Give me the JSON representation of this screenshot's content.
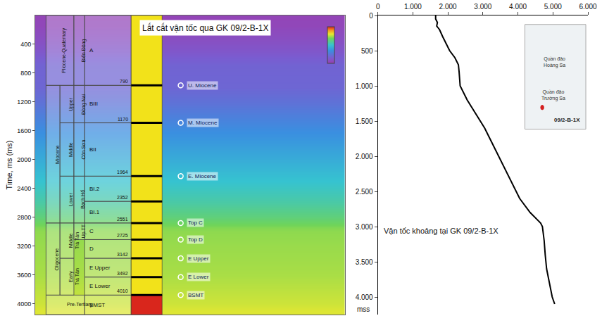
{
  "chart_data": [
    {
      "type": "heatmap",
      "title": "Lắt cắt vận tốc qua GK 09/2-B-1X",
      "y_label": "Time, ms (ms)",
      "ylim": [
        0,
        4150
      ],
      "yticks": [
        400,
        800,
        1200,
        1600,
        2000,
        2400,
        2800,
        3200,
        3600,
        4000
      ],
      "tick_labels": "y",
      "grid": false,
      "color_range": [
        1500,
        6000
      ],
      "cells": {
        "y": [
          0,
          50,
          100,
          150,
          200,
          250,
          300,
          400,
          500,
          600,
          700,
          800,
          1000,
          1200,
          1400,
          1600,
          1800,
          2000,
          2200,
          2400,
          2600,
          2800,
          2950,
          3000,
          3200,
          3400,
          3600,
          3800,
          4000,
          4100
        ],
        "values": [
          1650,
          1650,
          1700,
          1680,
          1760,
          1800,
          1850,
          1950,
          2050,
          2200,
          2300,
          2320,
          2350,
          2550,
          2800,
          3050,
          3250,
          3450,
          3650,
          3850,
          4050,
          4350,
          4650,
          4700,
          4750,
          4780,
          4820,
          4900,
          4980,
          5050
        ]
      },
      "column": {
        "cells": [
          {
            "label": "Pliocene-Quaternary",
            "cols": [
              1,
              2
            ],
            "top": 0,
            "base": 970
          },
          {
            "label": "Biển Đông",
            "cols": [
              3
            ],
            "top": 0,
            "base": 970
          },
          {
            "label": "Miocene",
            "cols": [
              1
            ],
            "top": 970,
            "base": 2880
          },
          {
            "label": "Upper",
            "cols": [
              2
            ],
            "top": 970,
            "base": 1490
          },
          {
            "label": "Middle",
            "cols": [
              2
            ],
            "top": 1490,
            "base": 2230
          },
          {
            "label": "Lower",
            "cols": [
              2
            ],
            "top": 2230,
            "base": 2880
          },
          {
            "label": "Đồng Nai",
            "cols": [
              3
            ],
            "top": 970,
            "base": 1490
          },
          {
            "label": "Côn Sơn",
            "cols": [
              3
            ],
            "top": 1490,
            "base": 2230
          },
          {
            "label": "Bạch Hổ",
            "cols": [
              3
            ],
            "top": 2230,
            "base": 2880
          },
          {
            "label": "Oligocene",
            "cols": [
              1
            ],
            "top": 2880,
            "base": 3880
          },
          {
            "label": "Middle Trà Tân",
            "cols": [
              2
            ],
            "top": 2880,
            "base": 3370
          },
          {
            "label": "Early Trà Tân",
            "cols": [
              2
            ],
            "top": 3370,
            "base": 3880
          },
          {
            "label": "Up.TT",
            "cols": [
              3
            ],
            "top": 2880,
            "base": 3110
          },
          {
            "label": "Pre-Tertiary",
            "cols": [
              1,
              2,
              3
            ],
            "top": 3880,
            "base": 4150
          }
        ],
        "units": [
          {
            "label": "A",
            "depth": 790,
            "top": 0,
            "base": 970
          },
          {
            "label": "BIII",
            "depth": 1170,
            "top": 970,
            "base": 1490
          },
          {
            "label": "BII",
            "depth": 1964,
            "top": 1490,
            "base": 2230
          },
          {
            "label": "BI.2",
            "depth": 2352,
            "top": 2230,
            "base": 2580
          },
          {
            "label": "BI.1",
            "depth": 2551,
            "top": 2580,
            "base": 2880
          },
          {
            "label": "C",
            "depth": 2725,
            "top": 2880,
            "base": 3110
          },
          {
            "label": "D",
            "depth": 3142,
            "top": 3110,
            "base": 3370
          },
          {
            "label": "E Upper",
            "depth": 3492,
            "top": 3370,
            "base": 3630
          },
          {
            "label": "E Lower",
            "depth": 4010,
            "top": 3630,
            "base": 3880
          },
          {
            "label": "BMST",
            "top": 3880,
            "base": 4150
          }
        ]
      },
      "markers": [
        {
          "label": "U. Miocene",
          "ms": 970
        },
        {
          "label": "M. Miocene",
          "ms": 1490
        },
        {
          "label": "E. Miocene",
          "ms": 2230
        },
        {
          "label": "Top C",
          "ms": 2880
        },
        {
          "label": "Top D",
          "ms": 3110
        },
        {
          "label": "E Upper",
          "ms": 3370
        },
        {
          "label": "E Lower",
          "ms": 3630
        },
        {
          "label": "BSMT",
          "ms": 3880
        }
      ]
    },
    {
      "type": "line",
      "annotation": "Vận tốc khoảng tại GK 09/2-B-1X",
      "y_label": "mss",
      "xlim": [
        0,
        6000
      ],
      "xticks": [
        0,
        {
          "value": 1000,
          "label": "1.000"
        },
        {
          "value": 2000,
          "label": "2.000"
        },
        {
          "value": 3000,
          "label": "3.000"
        },
        {
          "value": 4000,
          "label": "4.000"
        },
        {
          "value": 5000,
          "label": "5.000"
        },
        {
          "value": 6000,
          "label": "6.000"
        }
      ],
      "ylim": [
        0,
        4250
      ],
      "yticks": [
        0,
        500,
        {
          "value": 1000,
          "label": "1.000"
        },
        {
          "value": 1500,
          "label": "1.500"
        },
        {
          "value": 2000,
          "label": "2.000"
        },
        {
          "value": 2500,
          "label": "2.500"
        },
        {
          "value": 3000,
          "label": "3.000"
        },
        {
          "value": 3500,
          "label": "3.500"
        },
        {
          "value": 4000,
          "label": "4.000"
        }
      ],
      "grid": false,
      "series": [
        {
          "color": "#000000",
          "x": [
            1650,
            1650,
            1700,
            1680,
            1760,
            1800,
            1850,
            1950,
            2050,
            2200,
            2300,
            2320,
            2350,
            2550,
            2800,
            3050,
            3250,
            3450,
            3650,
            3850,
            4050,
            4350,
            4650,
            4700,
            4750,
            4780,
            4820,
            4900,
            4980,
            5050
          ],
          "y": [
            0,
            50,
            100,
            150,
            200,
            250,
            300,
            400,
            500,
            600,
            700,
            800,
            1000,
            1200,
            1400,
            1600,
            1800,
            2000,
            2200,
            2400,
            2600,
            2800,
            2950,
            3000,
            3200,
            3400,
            3600,
            3800,
            4000,
            4100
          ]
        }
      ],
      "inset": {
        "labels": [
          "Quần đảo Hoàng Sa",
          "Quần đảo Trường Sa"
        ],
        "well": "09/2-B-1X"
      }
    }
  ]
}
